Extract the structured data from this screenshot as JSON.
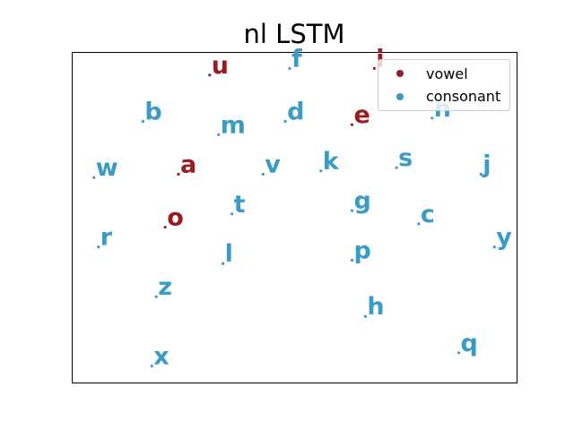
{
  "chart_data": {
    "type": "scatter",
    "title": "nl LSTM",
    "xlabel": "",
    "ylabel": "",
    "xlim": [
      0,
      100
    ],
    "ylim": [
      0,
      100
    ],
    "grid": false,
    "axis_ticks": false,
    "legend_placement": "top-right",
    "series": [
      {
        "name": "vowel",
        "color": "#9b1c20",
        "points": [
          {
            "label": "u",
            "x": 31,
            "y": 93
          },
          {
            "label": "i",
            "x": 68,
            "y": 95
          },
          {
            "label": "e",
            "x": 63,
            "y": 78
          },
          {
            "label": "a",
            "x": 24,
            "y": 63
          },
          {
            "label": "o",
            "x": 21,
            "y": 47
          }
        ]
      },
      {
        "name": "consonant",
        "color": "#3a9cc4",
        "points": [
          {
            "label": "f",
            "x": 49,
            "y": 95
          },
          {
            "label": "b",
            "x": 16,
            "y": 79
          },
          {
            "label": "m",
            "x": 33,
            "y": 75
          },
          {
            "label": "d",
            "x": 48,
            "y": 79
          },
          {
            "label": "n",
            "x": 81,
            "y": 80
          },
          {
            "label": "w",
            "x": 5,
            "y": 62
          },
          {
            "label": "v",
            "x": 43,
            "y": 63
          },
          {
            "label": "k",
            "x": 56,
            "y": 64
          },
          {
            "label": "s",
            "x": 73,
            "y": 65
          },
          {
            "label": "j",
            "x": 92,
            "y": 63
          },
          {
            "label": "t",
            "x": 36,
            "y": 51
          },
          {
            "label": "g",
            "x": 63,
            "y": 52
          },
          {
            "label": "c",
            "x": 78,
            "y": 48
          },
          {
            "label": "r",
            "x": 6,
            "y": 41
          },
          {
            "label": "y",
            "x": 95,
            "y": 41
          },
          {
            "label": "l",
            "x": 34,
            "y": 36
          },
          {
            "label": "p",
            "x": 63,
            "y": 37
          },
          {
            "label": "z",
            "x": 19,
            "y": 26
          },
          {
            "label": "h",
            "x": 66,
            "y": 20
          },
          {
            "label": "q",
            "x": 87,
            "y": 9
          },
          {
            "label": "x",
            "x": 18,
            "y": 5
          }
        ]
      }
    ]
  }
}
